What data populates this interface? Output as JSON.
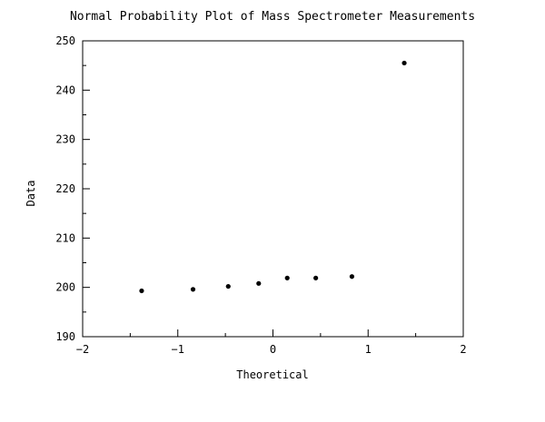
{
  "chart_data": {
    "type": "scatter",
    "title": "Normal Probability Plot of Mass Spectrometer Measurements",
    "xlabel": "Theoretical",
    "ylabel": "Data",
    "xlim": [
      -2,
      2
    ],
    "ylim": [
      190,
      250
    ],
    "x_major_ticks": [
      -2,
      -1,
      0,
      1,
      2
    ],
    "x_tick_labels": [
      "−2",
      "−1",
      "0",
      "1",
      "2"
    ],
    "x_minor_ticks": [
      -1.5,
      -0.5,
      0.5,
      1.5
    ],
    "y_major_ticks": [
      190,
      200,
      210,
      220,
      230,
      240,
      250
    ],
    "y_tick_labels": [
      "190",
      "200",
      "210",
      "220",
      "230",
      "240",
      "250"
    ],
    "y_minor_ticks": [
      195,
      205,
      215,
      225,
      235,
      245
    ],
    "grid": false,
    "legend": "none",
    "marker_color": "#000000",
    "points": [
      {
        "x": -1.38,
        "y": 199.3
      },
      {
        "x": -0.84,
        "y": 199.6
      },
      {
        "x": -0.47,
        "y": 200.2
      },
      {
        "x": -0.15,
        "y": 200.8
      },
      {
        "x": 0.15,
        "y": 201.9
      },
      {
        "x": 0.45,
        "y": 201.9
      },
      {
        "x": 0.83,
        "y": 202.2
      },
      {
        "x": 1.38,
        "y": 245.5
      }
    ]
  }
}
